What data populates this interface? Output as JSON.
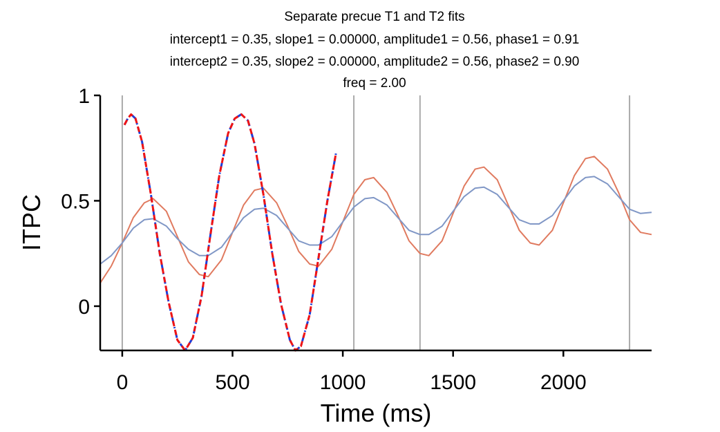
{
  "chart_data": {
    "type": "line",
    "title_lines": [
      "Separate precue T1 and T2 fits",
      "intercept1 = 0.35, slope1 = 0.00000, amplitude1 = 0.56, phase1 = 0.91",
      "intercept2 = 0.35, slope2 = 0.00000, amplitude2 = 0.56, phase2 = 0.90",
      "freq = 2.00"
    ],
    "xlabel": "Time (ms)",
    "ylabel": "ITPC",
    "xlim": [
      -100,
      2400
    ],
    "ylim": [
      -0.21,
      1.0
    ],
    "xticks": [
      0,
      500,
      1000,
      1500,
      2000
    ],
    "yticks": [
      0,
      0.5,
      1
    ],
    "ytick_labels": [
      "0",
      "0.5",
      "1"
    ],
    "vlines": [
      0,
      1050,
      1350,
      2300
    ],
    "grid": false,
    "legend": "none",
    "series": [
      {
        "id": "orange-sinusoid",
        "color": "#e07a5f",
        "style": "solid",
        "x": [
          -100,
          -50,
          0,
          50,
          100,
          140,
          200,
          250,
          300,
          350,
          390,
          450,
          500,
          550,
          600,
          640,
          700,
          750,
          800,
          850,
          890,
          950,
          1000,
          1050,
          1100,
          1140,
          1200,
          1250,
          1300,
          1350,
          1390,
          1450,
          1500,
          1550,
          1600,
          1640,
          1700,
          1750,
          1800,
          1850,
          1890,
          1950,
          2000,
          2050,
          2100,
          2140,
          2200,
          2250,
          2300,
          2350,
          2400
        ],
        "y": [
          0.11,
          0.19,
          0.3,
          0.42,
          0.49,
          0.51,
          0.45,
          0.33,
          0.21,
          0.15,
          0.14,
          0.22,
          0.35,
          0.48,
          0.55,
          0.56,
          0.49,
          0.38,
          0.26,
          0.2,
          0.19,
          0.27,
          0.4,
          0.53,
          0.6,
          0.61,
          0.54,
          0.43,
          0.31,
          0.25,
          0.24,
          0.31,
          0.44,
          0.57,
          0.65,
          0.66,
          0.6,
          0.48,
          0.36,
          0.3,
          0.29,
          0.36,
          0.49,
          0.62,
          0.7,
          0.71,
          0.65,
          0.54,
          0.41,
          0.35,
          0.34
        ]
      },
      {
        "id": "blue-sinusoid",
        "color": "#8097c6",
        "style": "solid",
        "x": [
          -100,
          -50,
          0,
          50,
          100,
          140,
          200,
          250,
          300,
          350,
          390,
          450,
          500,
          550,
          600,
          640,
          700,
          750,
          800,
          850,
          890,
          950,
          1000,
          1050,
          1100,
          1140,
          1200,
          1250,
          1300,
          1350,
          1390,
          1450,
          1500,
          1550,
          1600,
          1640,
          1700,
          1750,
          1800,
          1850,
          1890,
          1950,
          2000,
          2050,
          2100,
          2140,
          2200,
          2250,
          2300,
          2350,
          2400
        ],
        "y": [
          0.2,
          0.24,
          0.3,
          0.37,
          0.41,
          0.415,
          0.38,
          0.32,
          0.27,
          0.24,
          0.24,
          0.28,
          0.35,
          0.42,
          0.46,
          0.465,
          0.43,
          0.37,
          0.31,
          0.29,
          0.29,
          0.33,
          0.4,
          0.47,
          0.51,
          0.515,
          0.48,
          0.42,
          0.36,
          0.34,
          0.34,
          0.38,
          0.45,
          0.52,
          0.56,
          0.565,
          0.53,
          0.47,
          0.41,
          0.39,
          0.39,
          0.43,
          0.5,
          0.57,
          0.61,
          0.615,
          0.58,
          0.52,
          0.46,
          0.44,
          0.445
        ]
      },
      {
        "id": "blue-fit",
        "color": "#1f3fd9",
        "style": "dashdot",
        "x": [
          10,
          25,
          40,
          60,
          90,
          130,
          170,
          210,
          250,
          285,
          320,
          360,
          400,
          440,
          480,
          510,
          540,
          570,
          600,
          640,
          680,
          720,
          760,
          785,
          810,
          850,
          890,
          930,
          970
        ],
        "y": [
          0.86,
          0.89,
          0.91,
          0.89,
          0.78,
          0.53,
          0.25,
          0.02,
          -0.16,
          -0.21,
          -0.15,
          0.05,
          0.34,
          0.62,
          0.82,
          0.89,
          0.91,
          0.88,
          0.77,
          0.53,
          0.25,
          0.01,
          -0.16,
          -0.21,
          -0.19,
          -0.04,
          0.23,
          0.5,
          0.73
        ]
      },
      {
        "id": "red-fit",
        "color": "#f01414",
        "style": "dashed",
        "x": [
          10,
          25,
          40,
          60,
          90,
          130,
          170,
          210,
          250,
          285,
          320,
          360,
          400,
          440,
          480,
          510,
          540,
          570,
          600,
          640,
          680,
          720,
          760,
          785,
          810,
          850,
          890,
          930,
          970
        ],
        "y": [
          0.86,
          0.89,
          0.91,
          0.89,
          0.78,
          0.53,
          0.25,
          0.02,
          -0.16,
          -0.21,
          -0.15,
          0.05,
          0.34,
          0.62,
          0.82,
          0.89,
          0.91,
          0.88,
          0.77,
          0.53,
          0.25,
          0.01,
          -0.16,
          -0.21,
          -0.19,
          -0.04,
          0.23,
          0.5,
          0.73
        ]
      }
    ]
  }
}
